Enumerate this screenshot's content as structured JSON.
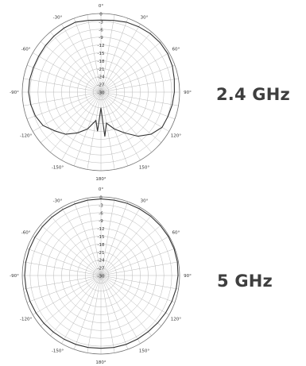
{
  "plots": [
    {
      "band_label": "2.4 GHz",
      "angle_labels": [
        "0°",
        "30°",
        "60°",
        "90°",
        "120°",
        "150°",
        "180°",
        "-150°",
        "-120°",
        "-90°",
        "-60°",
        "-30°"
      ],
      "radial_labels": [
        "0",
        "-3",
        "-6",
        "-9",
        "-12",
        "-15",
        "-18",
        "-21",
        "-24",
        "-27",
        "-30"
      ],
      "pattern": [
        [
          0,
          -2.5
        ],
        [
          10,
          -2.2
        ],
        [
          20,
          -1.6
        ],
        [
          30,
          -1.2
        ],
        [
          40,
          -0.8
        ],
        [
          50,
          -0.6
        ],
        [
          60,
          -0.6
        ],
        [
          70,
          -1.0
        ],
        [
          80,
          -1.6
        ],
        [
          90,
          -2.0
        ],
        [
          100,
          -2.4
        ],
        [
          110,
          -2.8
        ],
        [
          120,
          -3.1
        ],
        [
          130,
          -5.0
        ],
        [
          140,
          -8.0
        ],
        [
          150,
          -12.0
        ],
        [
          160,
          -15.0
        ],
        [
          170,
          -18.0
        ],
        [
          175,
          -13.0
        ],
        [
          180,
          -24.0
        ],
        [
          185,
          -15.0
        ],
        [
          190,
          -19.0
        ],
        [
          200,
          -15.0
        ],
        [
          210,
          -12.0
        ],
        [
          220,
          -9.0
        ],
        [
          230,
          -7.0
        ],
        [
          240,
          -4.5
        ],
        [
          250,
          -3.4
        ],
        [
          260,
          -2.8
        ],
        [
          270,
          -2.4
        ],
        [
          280,
          -2.4
        ],
        [
          290,
          -2.6
        ],
        [
          300,
          -2.6
        ],
        [
          310,
          -2.4
        ],
        [
          320,
          -2.1
        ],
        [
          330,
          -1.8
        ],
        [
          340,
          -1.6
        ],
        [
          350,
          -2.2
        ]
      ]
    },
    {
      "band_label": "5 GHz",
      "angle_labels": [
        "0°",
        "30°",
        "60°",
        "90°",
        "120°",
        "150°",
        "180°",
        "-150°",
        "-120°",
        "-90°",
        "-60°",
        "-30°"
      ],
      "radial_labels": [
        "0",
        "-3",
        "-6",
        "-9",
        "-12",
        "-15",
        "-18",
        "-21",
        "-24",
        "-27",
        "-30"
      ],
      "pattern": [
        [
          0,
          -0.8
        ],
        [
          10,
          -0.8
        ],
        [
          20,
          -0.7
        ],
        [
          30,
          -0.6
        ],
        [
          40,
          -0.5
        ],
        [
          50,
          -0.4
        ],
        [
          60,
          -0.3
        ],
        [
          70,
          -0.3
        ],
        [
          80,
          -0.4
        ],
        [
          90,
          -0.6
        ],
        [
          100,
          -0.9
        ],
        [
          110,
          -1.2
        ],
        [
          120,
          -1.5
        ],
        [
          130,
          -1.8
        ],
        [
          140,
          -2.0
        ],
        [
          150,
          -2.0
        ],
        [
          160,
          -2.0
        ],
        [
          170,
          -2.1
        ],
        [
          180,
          -2.2
        ],
        [
          190,
          -2.1
        ],
        [
          200,
          -2.0
        ],
        [
          210,
          -1.9
        ],
        [
          220,
          -1.8
        ],
        [
          230,
          -1.6
        ],
        [
          240,
          -1.4
        ],
        [
          250,
          -1.2
        ],
        [
          260,
          -1.0
        ],
        [
          270,
          -0.9
        ],
        [
          280,
          -0.9
        ],
        [
          290,
          -0.9
        ],
        [
          300,
          -0.9
        ],
        [
          310,
          -0.9
        ],
        [
          320,
          -0.9
        ],
        [
          330,
          -0.9
        ],
        [
          340,
          -0.9
        ],
        [
          350,
          -0.8
        ]
      ]
    }
  ]
}
